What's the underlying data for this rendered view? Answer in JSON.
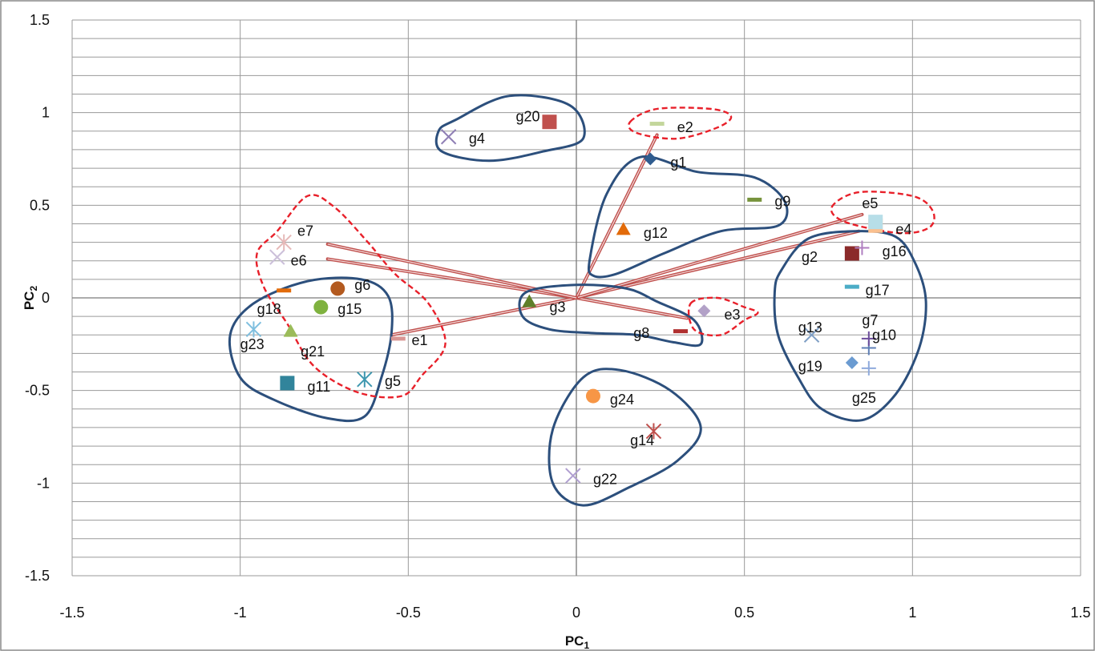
{
  "chart_data": {
    "type": "scatter",
    "title": "",
    "xlabel": "PC",
    "xlabel_sub": "1",
    "ylabel": "PC",
    "ylabel_sub": "2",
    "xlim": [
      -1.5,
      1.5
    ],
    "ylim": [
      -1.5,
      1.5
    ],
    "x_ticks": [
      {
        "value": -1.5,
        "label": "-1.5"
      },
      {
        "value": -1,
        "label": "-1"
      },
      {
        "value": -0.5,
        "label": "-0.5"
      },
      {
        "value": 0,
        "label": "0"
      },
      {
        "value": 0.5,
        "label": "0.5"
      },
      {
        "value": 1,
        "label": "1"
      },
      {
        "value": 1.5,
        "label": "1.5"
      }
    ],
    "y_ticks": [
      {
        "value": 1.5,
        "label": "1.5"
      },
      {
        "value": 1,
        "label": "1"
      },
      {
        "value": 0.5,
        "label": "0.5"
      },
      {
        "value": 0,
        "label": "0"
      },
      {
        "value": -0.5,
        "label": "-0.5"
      },
      {
        "value": -1,
        "label": "-1"
      },
      {
        "value": -1.5,
        "label": "-1.5"
      }
    ],
    "grid": {
      "horizontal_minor_step": 0.1,
      "vertical_major_step": 0.5
    },
    "points": [
      {
        "label": "g1",
        "x": 0.22,
        "y": 0.75,
        "marker": "diamond",
        "color": "#2f5c8f",
        "lx": 0.28,
        "ly": 0.73
      },
      {
        "label": "g2",
        "x": 0.82,
        "y": 0.24,
        "marker": "square",
        "color": "#8b2a2a",
        "lx": 0.67,
        "ly": 0.22
      },
      {
        "label": "g3",
        "x": -0.14,
        "y": -0.02,
        "marker": "triangle",
        "color": "#5f7f2a",
        "lx": -0.08,
        "ly": -0.05
      },
      {
        "label": "g4",
        "x": -0.38,
        "y": 0.87,
        "marker": "x",
        "color": "#8f7fb5",
        "lx": -0.32,
        "ly": 0.86
      },
      {
        "label": "g5",
        "x": -0.63,
        "y": -0.44,
        "marker": "asterisk",
        "color": "#3f98b0",
        "lx": -0.57,
        "ly": -0.45
      },
      {
        "label": "g6",
        "x": -0.71,
        "y": 0.05,
        "marker": "circle",
        "color": "#b35a1f",
        "lx": -0.66,
        "ly": 0.07
      },
      {
        "label": "g7",
        "x": 0.87,
        "y": -0.27,
        "marker": "plus",
        "color": "#5f7fb5",
        "lx": 0.85,
        "ly": -0.12
      },
      {
        "label": "g8",
        "x": 0.31,
        "y": -0.18,
        "marker": "dash",
        "color": "#b03030",
        "lx": 0.17,
        "ly": -0.19
      },
      {
        "label": "g9",
        "x": 0.53,
        "y": 0.53,
        "marker": "dash",
        "color": "#77933c",
        "lx": 0.59,
        "ly": 0.52
      },
      {
        "label": "g10",
        "x": 0.87,
        "y": -0.22,
        "marker": "plus",
        "color": "#6b4c9a",
        "lx": 0.88,
        "ly": -0.2
      },
      {
        "label": "g11",
        "x": -0.86,
        "y": -0.46,
        "marker": "square",
        "color": "#31849b",
        "lx": -0.8,
        "ly": -0.48
      },
      {
        "label": "g12",
        "x": 0.14,
        "y": 0.37,
        "marker": "triangle",
        "color": "#e26b0a",
        "lx": 0.2,
        "ly": 0.35
      },
      {
        "label": "g13",
        "x": 0.7,
        "y": -0.2,
        "marker": "x",
        "color": "#7f9fc5",
        "lx": 0.66,
        "ly": -0.16
      },
      {
        "label": "g14",
        "x": 0.23,
        "y": -0.72,
        "marker": "asterisk",
        "color": "#c0504d",
        "lx": 0.16,
        "ly": -0.77
      },
      {
        "label": "g15",
        "x": -0.76,
        "y": -0.05,
        "marker": "circle",
        "color": "#7fb23f",
        "lx": -0.71,
        "ly": -0.06
      },
      {
        "label": "g16",
        "x": 0.85,
        "y": 0.27,
        "marker": "plus",
        "color": "#b07fc0",
        "lx": 0.91,
        "ly": 0.25
      },
      {
        "label": "g17",
        "x": 0.82,
        "y": 0.06,
        "marker": "dash",
        "color": "#4bacc6",
        "lx": 0.86,
        "ly": 0.04
      },
      {
        "label": "g18",
        "x": -0.87,
        "y": 0.04,
        "marker": "dash",
        "color": "#e26b0a",
        "lx": -0.95,
        "ly": -0.06
      },
      {
        "label": "g19",
        "x": 0.82,
        "y": -0.35,
        "marker": "diamond",
        "color": "#6b9bd1",
        "lx": 0.66,
        "ly": -0.37
      },
      {
        "label": "g20",
        "x": -0.08,
        "y": 0.95,
        "marker": "square",
        "color": "#c0504d",
        "lx": -0.18,
        "ly": 0.98
      },
      {
        "label": "g21",
        "x": -0.85,
        "y": -0.18,
        "marker": "triangle",
        "color": "#9bbb59",
        "lx": -0.82,
        "ly": -0.29
      },
      {
        "label": "g22",
        "x": -0.01,
        "y": -0.96,
        "marker": "x",
        "color": "#b09fd0",
        "lx": 0.05,
        "ly": -0.98
      },
      {
        "label": "g23",
        "x": -0.96,
        "y": -0.17,
        "marker": "asterisk",
        "color": "#7fbfdf",
        "lx": -1.0,
        "ly": -0.25
      },
      {
        "label": "g24",
        "x": 0.05,
        "y": -0.53,
        "marker": "circle",
        "color": "#f79646",
        "lx": 0.1,
        "ly": -0.55
      },
      {
        "label": "g25",
        "x": 0.87,
        "y": -0.38,
        "marker": "plus",
        "color": "#8faadc",
        "lx": 0.82,
        "ly": -0.54
      },
      {
        "label": "e1",
        "x": -0.53,
        "y": -0.22,
        "marker": "dash",
        "color": "#d99694",
        "lx": -0.49,
        "ly": -0.23
      },
      {
        "label": "e2",
        "x": 0.24,
        "y": 0.94,
        "marker": "dash",
        "color": "#c3d69b",
        "lx": 0.3,
        "ly": 0.92
      },
      {
        "label": "e3",
        "x": 0.38,
        "y": -0.07,
        "marker": "diamond",
        "color": "#b2a1c7",
        "lx": 0.44,
        "ly": -0.09
      },
      {
        "label": "e4",
        "x": 0.89,
        "y": 0.39,
        "marker": "square",
        "color": "#fac08f",
        "lx": 0.95,
        "ly": 0.37
      },
      {
        "label": "e5",
        "x": 0.89,
        "y": 0.41,
        "marker": "square",
        "color": "#b7dee8",
        "lx": 0.85,
        "ly": 0.51
      },
      {
        "label": "e6",
        "x": -0.89,
        "y": 0.22,
        "marker": "x",
        "color": "#ccc0da",
        "lx": -0.85,
        "ly": 0.2
      },
      {
        "label": "e7",
        "x": -0.87,
        "y": 0.3,
        "marker": "asterisk",
        "color": "#e6b9b8",
        "lx": -0.83,
        "ly": 0.36
      }
    ],
    "vectors": [
      {
        "name": "e1",
        "x": -0.55,
        "y": -0.2
      },
      {
        "name": "e2",
        "x": 0.24,
        "y": 0.88
      },
      {
        "name": "e3",
        "x": 0.33,
        "y": -0.11
      },
      {
        "name": "e4",
        "x": 0.84,
        "y": 0.36
      },
      {
        "name": "e5",
        "x": 0.85,
        "y": 0.45
      },
      {
        "name": "e6",
        "x": -0.74,
        "y": 0.21
      },
      {
        "name": "e7",
        "x": -0.74,
        "y": 0.29
      }
    ],
    "clusters_solid": [
      [
        [
          -0.36,
          0.96
        ],
        [
          -0.2,
          1.09
        ],
        [
          -0.02,
          1.04
        ],
        [
          0.02,
          0.86
        ],
        [
          -0.1,
          0.79
        ],
        [
          -0.26,
          0.74
        ],
        [
          -0.4,
          0.79
        ],
        [
          -0.41,
          0.9
        ]
      ],
      [
        [
          0.04,
          0.21
        ],
        [
          0.09,
          0.56
        ],
        [
          0.19,
          0.76
        ],
        [
          0.36,
          0.68
        ],
        [
          0.53,
          0.65
        ],
        [
          0.62,
          0.52
        ],
        [
          0.6,
          0.39
        ],
        [
          0.43,
          0.36
        ],
        [
          0.26,
          0.24
        ],
        [
          0.12,
          0.13
        ],
        [
          0.05,
          0.12
        ]
      ],
      [
        [
          -0.96,
          -0.03
        ],
        [
          -0.8,
          0.09
        ],
        [
          -0.64,
          0.1
        ],
        [
          -0.56,
          0.01
        ],
        [
          -0.55,
          -0.19
        ],
        [
          -0.58,
          -0.43
        ],
        [
          -0.63,
          -0.64
        ],
        [
          -0.74,
          -0.65
        ],
        [
          -0.9,
          -0.55
        ],
        [
          -1.0,
          -0.43
        ],
        [
          -1.03,
          -0.2
        ]
      ],
      [
        [
          -0.15,
          0.03
        ],
        [
          0.0,
          0.07
        ],
        [
          0.15,
          0.05
        ],
        [
          0.24,
          -0.02
        ],
        [
          0.35,
          -0.12
        ],
        [
          0.37,
          -0.25
        ],
        [
          0.29,
          -0.24
        ],
        [
          0.18,
          -0.2
        ],
        [
          0.05,
          -0.19
        ],
        [
          -0.08,
          -0.17
        ],
        [
          -0.16,
          -0.1
        ]
      ],
      [
        [
          0.61,
          0.15
        ],
        [
          0.69,
          0.32
        ],
        [
          0.83,
          0.36
        ],
        [
          0.95,
          0.33
        ],
        [
          1.01,
          0.18
        ],
        [
          1.04,
          -0.02
        ],
        [
          1.02,
          -0.27
        ],
        [
          0.95,
          -0.52
        ],
        [
          0.85,
          -0.66
        ],
        [
          0.73,
          -0.6
        ],
        [
          0.66,
          -0.43
        ],
        [
          0.6,
          -0.2
        ],
        [
          0.59,
          0.03
        ]
      ],
      [
        [
          -0.07,
          -0.71
        ],
        [
          0.02,
          -0.43
        ],
        [
          0.13,
          -0.39
        ],
        [
          0.28,
          -0.5
        ],
        [
          0.37,
          -0.7
        ],
        [
          0.3,
          -0.88
        ],
        [
          0.16,
          -1.02
        ],
        [
          0.02,
          -1.12
        ],
        [
          -0.07,
          -1.0
        ]
      ]
    ],
    "clusters_dashed": [
      [
        [
          0.16,
          0.95
        ],
        [
          0.24,
          1.02
        ],
        [
          0.4,
          1.02
        ],
        [
          0.46,
          0.98
        ],
        [
          0.42,
          0.92
        ],
        [
          0.3,
          0.86
        ],
        [
          0.18,
          0.89
        ]
      ],
      [
        [
          0.34,
          -0.03
        ],
        [
          0.42,
          0.0
        ],
        [
          0.5,
          -0.05
        ],
        [
          0.54,
          -0.08
        ],
        [
          0.5,
          -0.12
        ],
        [
          0.43,
          -0.2
        ],
        [
          0.35,
          -0.17
        ]
      ],
      [
        [
          0.76,
          0.49
        ],
        [
          0.84,
          0.57
        ],
        [
          1.0,
          0.55
        ],
        [
          1.06,
          0.47
        ],
        [
          1.05,
          0.38
        ],
        [
          0.96,
          0.35
        ],
        [
          0.8,
          0.41
        ]
      ],
      [
        [
          -0.89,
          0.36
        ],
        [
          -0.8,
          0.55
        ],
        [
          -0.72,
          0.49
        ],
        [
          -0.62,
          0.3
        ],
        [
          -0.54,
          0.13
        ],
        [
          -0.44,
          -0.03
        ],
        [
          -0.39,
          -0.25
        ],
        [
          -0.46,
          -0.42
        ],
        [
          -0.52,
          -0.53
        ],
        [
          -0.65,
          -0.51
        ],
        [
          -0.78,
          -0.37
        ],
        [
          -0.86,
          -0.14
        ],
        [
          -0.93,
          0.06
        ],
        [
          -0.95,
          0.24
        ]
      ]
    ]
  }
}
